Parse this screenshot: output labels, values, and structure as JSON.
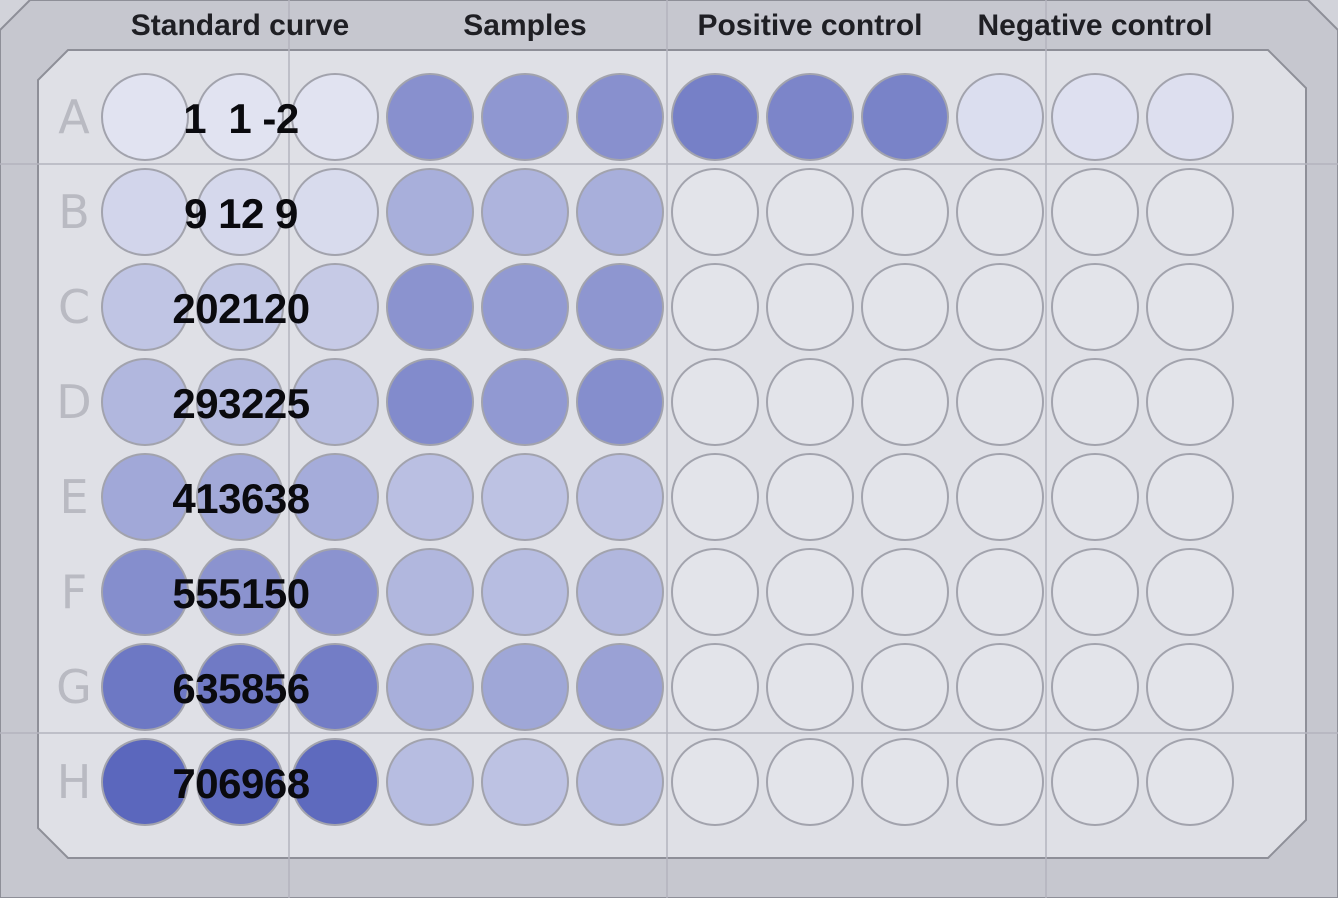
{
  "headers": [
    {
      "label": "Standard curve",
      "cols": [
        0,
        2
      ]
    },
    {
      "label": "Samples",
      "cols": [
        3,
        5
      ]
    },
    {
      "label": "Positive control",
      "cols": [
        6,
        8
      ]
    },
    {
      "label": "Negative control",
      "cols": [
        9,
        11
      ]
    }
  ],
  "rows": [
    "A",
    "B",
    "C",
    "D",
    "E",
    "F",
    "G",
    "H"
  ],
  "standard_curve_values": [
    "1  1 -2",
    "9 12 9",
    "202120",
    "293225",
    "413638",
    "555150",
    "635856",
    "706968"
  ],
  "colors": {
    "plate": "#dfe0e6",
    "frame": "#c6c7cf",
    "border": "#8e8f98",
    "empty_well": "#e3e4ea",
    "well_stroke": "#a2a3ad",
    "blue_light": "#e4e6f2",
    "blue_dark": "#4f5cb8"
  },
  "well_intensity": [
    [
      0.02,
      0.02,
      0.02,
      0.62,
      0.57,
      0.62,
      0.74,
      0.7,
      0.72,
      0.06,
      0.04,
      0.05
    ],
    [
      0.12,
      0.1,
      0.08,
      0.4,
      0.36,
      0.4,
      0,
      0,
      0,
      0,
      0,
      0
    ],
    [
      0.24,
      0.22,
      0.2,
      0.6,
      0.55,
      0.58,
      0,
      0,
      0,
      0,
      0,
      0
    ],
    [
      0.34,
      0.32,
      0.3,
      0.66,
      0.56,
      0.64,
      0,
      0,
      0,
      0,
      0,
      0
    ],
    [
      0.45,
      0.44,
      0.42,
      0.28,
      0.26,
      0.28,
      0,
      0,
      0,
      0,
      0,
      0
    ],
    [
      0.64,
      0.6,
      0.6,
      0.34,
      0.3,
      0.34,
      0,
      0,
      0,
      0,
      0,
      0
    ],
    [
      0.8,
      0.78,
      0.76,
      0.4,
      0.46,
      0.5,
      0,
      0,
      0,
      0,
      0,
      0
    ],
    [
      0.92,
      0.9,
      0.9,
      0.3,
      0.26,
      0.3,
      0,
      0,
      0,
      0,
      0,
      0
    ]
  ]
}
